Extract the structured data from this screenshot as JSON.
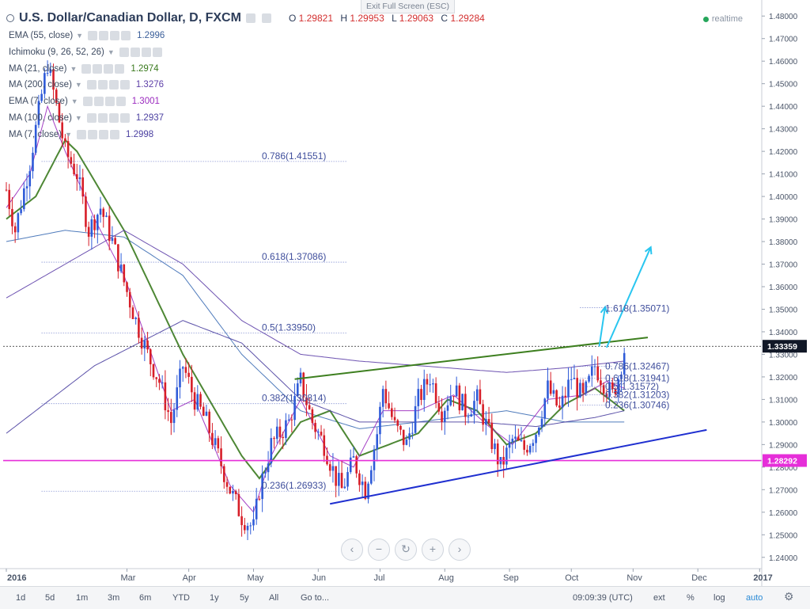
{
  "header": {
    "title": "U.S. Dollar/Canadian Dollar, D, FXCM",
    "ohlc": {
      "o_label": "O",
      "o": "1.29821",
      "h_label": "H",
      "h": "1.29953",
      "l_label": "L",
      "l": "1.29063",
      "c_label": "C",
      "c": "1.29284"
    },
    "exit_fullscreen": "Exit Full Screen (ESC)",
    "realtime": "realtime"
  },
  "indicators": [
    {
      "label": "EMA (55, close)",
      "value": "1.2996",
      "color": "#3b5f9a"
    },
    {
      "label": "Ichimoku (9, 26, 52, 26)",
      "value": "",
      "color": "#9aa3b0"
    },
    {
      "label": "MA (21, close)",
      "value": "1.2974",
      "color": "#3a7a1e"
    },
    {
      "label": "MA (200, close)",
      "value": "1.3276",
      "color": "#5d3fa8"
    },
    {
      "label": "EMA (7, close)",
      "value": "1.3001",
      "color": "#9b2bbf"
    },
    {
      "label": "MA (100, close)",
      "value": "1.2937",
      "color": "#4a3fa0"
    },
    {
      "label": "MA (7, close)",
      "value": "1.2998",
      "color": "#4a3fa0"
    }
  ],
  "chart_data": {
    "type": "candlestick",
    "x_axis": {
      "labels": [
        "2016",
        "Mar",
        "Apr",
        "May",
        "Jun",
        "Jul",
        "Aug",
        "Sep",
        "Oct",
        "Nov",
        "Dec",
        "2017"
      ],
      "positions_day_index": [
        0,
        41,
        62,
        84,
        106,
        127,
        149,
        171,
        192,
        213,
        235,
        256
      ]
    },
    "y_axis": {
      "min": 1.235,
      "max": 1.485,
      "ticks": [
        "1.24000",
        "1.25000",
        "1.26000",
        "1.27000",
        "1.28000",
        "1.29000",
        "1.30000",
        "1.31000",
        "1.32000",
        "1.33000",
        "1.34000",
        "1.35000",
        "1.36000",
        "1.37000",
        "1.38000",
        "1.39000",
        "1.40000",
        "1.41000",
        "1.42000",
        "1.43000",
        "1.44000",
        "1.45000",
        "1.46000",
        "1.47000",
        "1.48000"
      ]
    },
    "price_path": [
      [
        0,
        1.403
      ],
      [
        3,
        1.385
      ],
      [
        8,
        1.415
      ],
      [
        12,
        1.445
      ],
      [
        14,
        1.459
      ],
      [
        17,
        1.44
      ],
      [
        20,
        1.42
      ],
      [
        24,
        1.41
      ],
      [
        28,
        1.385
      ],
      [
        32,
        1.395
      ],
      [
        36,
        1.38
      ],
      [
        40,
        1.362
      ],
      [
        44,
        1.345
      ],
      [
        48,
        1.33
      ],
      [
        52,
        1.318
      ],
      [
        56,
        1.3
      ],
      [
        60,
        1.325
      ],
      [
        64,
        1.31
      ],
      [
        68,
        1.3
      ],
      [
        72,
        1.285
      ],
      [
        76,
        1.27
      ],
      [
        80,
        1.258
      ],
      [
        84,
        1.253
      ],
      [
        86,
        1.27
      ],
      [
        90,
        1.29
      ],
      [
        96,
        1.3
      ],
      [
        100,
        1.318
      ],
      [
        104,
        1.3
      ],
      [
        108,
        1.29
      ],
      [
        112,
        1.275
      ],
      [
        114,
        1.27
      ],
      [
        118,
        1.283
      ],
      [
        122,
        1.27
      ],
      [
        126,
        1.295
      ],
      [
        128,
        1.315
      ],
      [
        132,
        1.298
      ],
      [
        136,
        1.29
      ],
      [
        140,
        1.31
      ],
      [
        144,
        1.32
      ],
      [
        148,
        1.305
      ],
      [
        152,
        1.315
      ],
      [
        156,
        1.305
      ],
      [
        160,
        1.31
      ],
      [
        164,
        1.295
      ],
      [
        168,
        1.28
      ],
      [
        172,
        1.292
      ],
      [
        176,
        1.288
      ],
      [
        180,
        1.296
      ],
      [
        184,
        1.315
      ],
      [
        188,
        1.305
      ],
      [
        192,
        1.32
      ],
      [
        196,
        1.31
      ],
      [
        200,
        1.325
      ],
      [
        204,
        1.315
      ],
      [
        206,
        1.312
      ],
      [
        208,
        1.32
      ],
      [
        210,
        1.332
      ]
    ],
    "overlay_series": [
      {
        "name": "EMA (55, close)",
        "color": "#3d6eb5",
        "points": [
          [
            0,
            1.38
          ],
          [
            20,
            1.385
          ],
          [
            40,
            1.382
          ],
          [
            60,
            1.365
          ],
          [
            80,
            1.33
          ],
          [
            100,
            1.305
          ],
          [
            120,
            1.297
          ],
          [
            140,
            1.3
          ],
          [
            170,
            1.305
          ],
          [
            190,
            1.3
          ],
          [
            210,
            1.3
          ]
        ]
      },
      {
        "name": "MA (21, close)",
        "color": "#3a7a1e",
        "points": [
          [
            0,
            1.39
          ],
          [
            10,
            1.4
          ],
          [
            20,
            1.425
          ],
          [
            24,
            1.42
          ],
          [
            40,
            1.385
          ],
          [
            60,
            1.33
          ],
          [
            80,
            1.285
          ],
          [
            86,
            1.275
          ],
          [
            100,
            1.3
          ],
          [
            110,
            1.305
          ],
          [
            120,
            1.285
          ],
          [
            140,
            1.295
          ],
          [
            150,
            1.31
          ],
          [
            160,
            1.305
          ],
          [
            170,
            1.29
          ],
          [
            180,
            1.295
          ],
          [
            190,
            1.308
          ],
          [
            200,
            1.315
          ],
          [
            210,
            1.305
          ]
        ]
      },
      {
        "name": "MA (200, close)",
        "color": "#5d3fa8",
        "points": [
          [
            0,
            1.355
          ],
          [
            20,
            1.37
          ],
          [
            40,
            1.385
          ],
          [
            60,
            1.37
          ],
          [
            80,
            1.345
          ],
          [
            100,
            1.33
          ],
          [
            120,
            1.327
          ],
          [
            140,
            1.325
          ],
          [
            170,
            1.322
          ],
          [
            190,
            1.324
          ],
          [
            210,
            1.327
          ]
        ]
      },
      {
        "name": "EMA (7, close)",
        "color": "#9b2bbf",
        "points": [
          [
            0,
            1.395
          ],
          [
            8,
            1.41
          ],
          [
            14,
            1.44
          ],
          [
            20,
            1.42
          ],
          [
            30,
            1.39
          ],
          [
            40,
            1.365
          ],
          [
            56,
            1.305
          ],
          [
            64,
            1.31
          ],
          [
            76,
            1.272
          ],
          [
            84,
            1.26
          ],
          [
            90,
            1.285
          ],
          [
            100,
            1.31
          ],
          [
            110,
            1.285
          ],
          [
            118,
            1.28
          ],
          [
            128,
            1.305
          ],
          [
            140,
            1.305
          ],
          [
            152,
            1.312
          ],
          [
            164,
            1.298
          ],
          [
            172,
            1.29
          ],
          [
            184,
            1.31
          ],
          [
            196,
            1.312
          ],
          [
            204,
            1.318
          ],
          [
            210,
            1.315
          ]
        ]
      },
      {
        "name": "MA (100, close)",
        "color": "#4a3fa0",
        "points": [
          [
            0,
            1.295
          ],
          [
            30,
            1.325
          ],
          [
            60,
            1.345
          ],
          [
            80,
            1.335
          ],
          [
            100,
            1.31
          ],
          [
            120,
            1.3
          ],
          [
            140,
            1.3
          ],
          [
            160,
            1.3
          ],
          [
            180,
            1.298
          ],
          [
            200,
            1.302
          ],
          [
            210,
            1.305
          ]
        ]
      }
    ],
    "annotations": {
      "fib_top": [
        {
          "label": "0.786(1.41551)",
          "value": 1.41551
        },
        {
          "label": "0.618(1.37086)",
          "value": 1.37086
        },
        {
          "label": "0.5(1.33950)",
          "value": 1.3395
        },
        {
          "label": "0.382(1.30814)",
          "value": 1.30814
        },
        {
          "label": "0.236(1.26933)",
          "value": 1.26933
        }
      ],
      "fib_right": [
        {
          "label": "1.618(1.35071)",
          "value": 1.35071
        },
        {
          "label": "0.786(1.32467)",
          "value": 1.32467
        },
        {
          "label": "0.618(1.31941)",
          "value": 1.31941
        },
        {
          "label": "0.5(1.31572)",
          "value": 1.31572
        },
        {
          "label": "0.382(1.31203)",
          "value": 1.31203
        },
        {
          "label": "0.236(1.30746)",
          "value": 1.30746
        }
      ],
      "current_price": "1.33359",
      "current_value": 1.33359,
      "horizontal_level": "1.28292",
      "horizontal_value": 1.28292
    }
  },
  "bottom_bar": {
    "timeframes": [
      "1d",
      "5d",
      "1m",
      "3m",
      "6m",
      "YTD",
      "1y",
      "5y",
      "All",
      "Go to..."
    ],
    "clock": "09:09:39 (UTC)",
    "right_buttons": [
      "ext",
      "%",
      "log",
      "auto"
    ]
  }
}
